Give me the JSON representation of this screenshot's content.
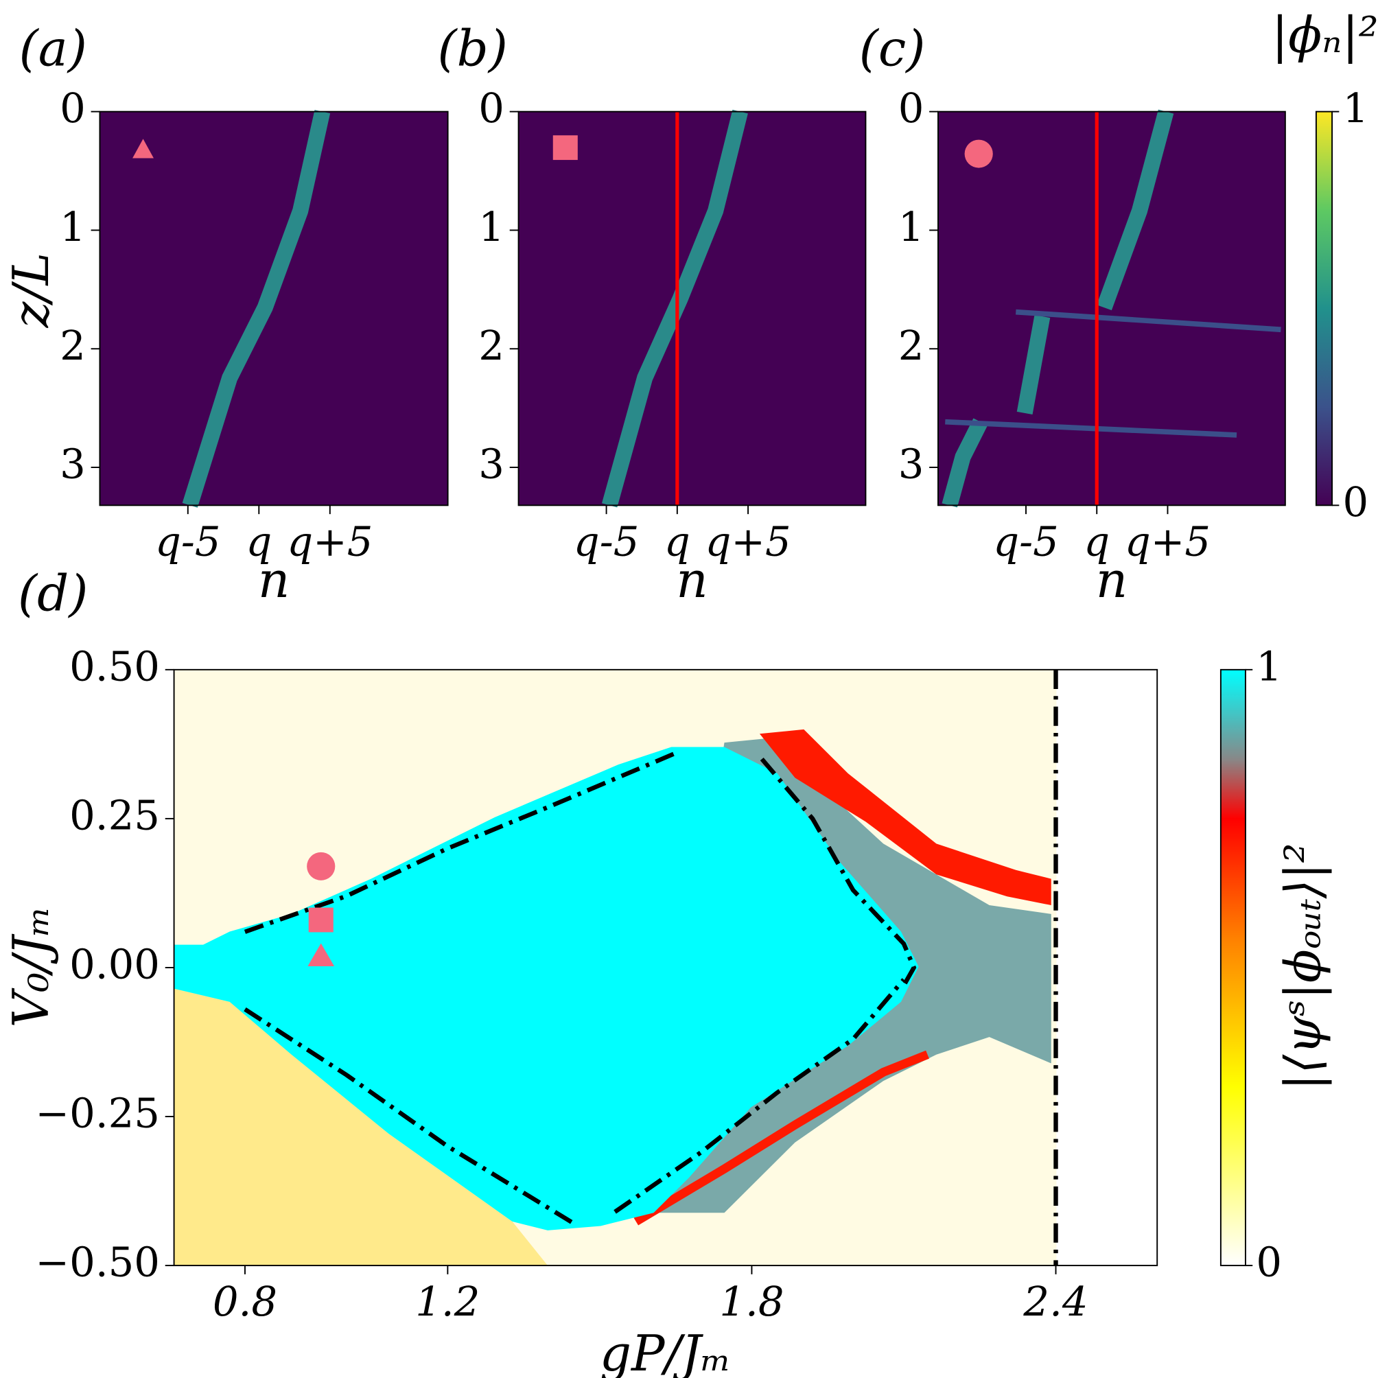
{
  "chart_data": [
    {
      "type": "heatmap",
      "panel_label": "(a)",
      "xlabel": "n",
      "ylabel": "z/L",
      "xlim": [
        -11.2,
        13.3
      ],
      "ylim": [
        0,
        3.32
      ],
      "xticks": [
        {
          "value": -5,
          "label": "q-5"
        },
        {
          "value": 0,
          "label": "q"
        },
        {
          "value": 5,
          "label": "q+5"
        }
      ],
      "yticks": [
        0,
        1,
        2,
        3
      ]
    },
    {
      "type": "heatmap",
      "panel_label": "(b)",
      "xlabel": "n",
      "xlim": [
        -11.2,
        13.3
      ],
      "ylim": [
        0,
        3.32
      ],
      "xticks": [
        {
          "value": -5,
          "label": "q-5"
        },
        {
          "value": 0,
          "label": "q"
        },
        {
          "value": 5,
          "label": "q+5"
        }
      ],
      "yticks": [
        0,
        1,
        2,
        3
      ],
      "vline": 0,
      "vline_color": "#ff0000"
    },
    {
      "type": "heatmap",
      "panel_label": "(c)",
      "xlabel": "n",
      "xlim": [
        -11.2,
        13.3
      ],
      "ylim": [
        0,
        3.32
      ],
      "xticks": [
        {
          "value": -5,
          "label": "q-5"
        },
        {
          "value": 0,
          "label": "q"
        },
        {
          "value": 5,
          "label": "q+5"
        }
      ],
      "yticks": [
        0,
        1,
        2,
        3
      ],
      "vline": 0,
      "vline_color": "#ff0000",
      "colorbar": {
        "label": "|ϕₙ|²",
        "lim": [
          0,
          1
        ],
        "ticks": [
          0,
          1
        ]
      }
    },
    {
      "type": "phase",
      "panel_label": "(d)",
      "xlabel": "gP/Jₘ",
      "ylabel": "V₀/Jₘ",
      "xlim": [
        0.66,
        2.6
      ],
      "ylim": [
        -0.5,
        0.5
      ],
      "xticks": [
        0.8,
        1.2,
        1.8,
        2.4
      ],
      "yticks": [
        {
          "value": -0.5,
          "label": "−0.50"
        },
        {
          "value": -0.25,
          "label": "−0.25"
        },
        {
          "value": 0,
          "label": "0.00"
        },
        {
          "value": 0.25,
          "label": "0.25"
        },
        {
          "value": 0.5,
          "label": "0.50"
        }
      ],
      "vline": 2.4,
      "vline_color": "#000000",
      "boundaries": [
        {
          "x": [
            0.8,
            1.0,
            1.2,
            1.4,
            1.65
          ],
          "y": [
            0.06,
            0.12,
            0.2,
            0.27,
            0.36
          ]
        },
        {
          "x": [
            0.8,
            1.0,
            1.2,
            1.45
          ],
          "y": [
            -0.07,
            -0.18,
            -0.3,
            -0.43
          ]
        },
        {
          "x": [
            1.53,
            1.7,
            1.85,
            2.0,
            2.1
          ],
          "y": [
            -0.41,
            -0.31,
            -0.21,
            -0.12,
            -0.02
          ]
        },
        {
          "x": [
            1.82,
            1.92,
            2.0,
            2.1,
            2.12,
            2.1
          ],
          "y": [
            0.35,
            0.25,
            0.13,
            0.04,
            0.0,
            -0.03
          ]
        }
      ],
      "points": [
        {
          "marker": "circle",
          "x": 0.95,
          "y": 0.17
        },
        {
          "marker": "square",
          "x": 0.95,
          "y": 0.08
        },
        {
          "marker": "triangle",
          "x": 0.95,
          "y": 0.02
        }
      ],
      "point_color": "#f4677e",
      "colorbar": {
        "label": "|⟨ψˢ|ϕₒᵤₜ⟩|²",
        "lim": [
          0,
          1
        ],
        "ticks": [
          0,
          1
        ]
      }
    }
  ]
}
